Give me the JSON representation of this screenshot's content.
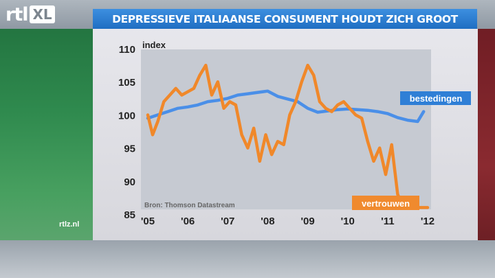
{
  "header": {
    "logo_rtl": "rtl",
    "logo_xl": "XL",
    "title": "DEPRESSIEVE ITALIAANSE CONSUMENT HOUDT ZICH GROOT"
  },
  "footer": {
    "site": "rtlz.nl"
  },
  "colors": {
    "title_bar": "#2a7fd6",
    "series_bestedingen": "#4a8fe8",
    "series_vertrouwen": "#f0882a",
    "plot_bg": "#c6cad2"
  },
  "chart_data": {
    "type": "line",
    "ylabel": "index",
    "source": "Bron: Thomson Datastream",
    "ylim": [
      85,
      110
    ],
    "yticks": [
      85,
      90,
      95,
      100,
      105,
      110
    ],
    "xlim": [
      2005,
      2012
    ],
    "xticks": [
      {
        "value": 2005,
        "label": "'05"
      },
      {
        "value": 2006,
        "label": "'06"
      },
      {
        "value": 2007,
        "label": "'07"
      },
      {
        "value": 2008,
        "label": "'08"
      },
      {
        "value": 2009,
        "label": "'09"
      },
      {
        "value": 2010,
        "label": "'10"
      },
      {
        "value": 2011,
        "label": "'11"
      },
      {
        "value": 2012,
        "label": "'12"
      }
    ],
    "legend_placement": "series labels at line ends",
    "series": [
      {
        "name": "bestedingen",
        "color": "#4a8fe8",
        "x": [
          2005.0,
          2005.25,
          2005.5,
          2005.75,
          2006.0,
          2006.25,
          2006.5,
          2006.75,
          2007.0,
          2007.25,
          2007.5,
          2007.75,
          2008.0,
          2008.25,
          2008.5,
          2008.75,
          2009.0,
          2009.25,
          2009.5,
          2009.75,
          2010.0,
          2010.25,
          2010.5,
          2010.75,
          2011.0,
          2011.25,
          2011.5,
          2011.75,
          2011.9
        ],
        "y": [
          99.5,
          100.0,
          100.5,
          101.0,
          101.2,
          101.5,
          102.0,
          102.2,
          102.5,
          103.0,
          103.2,
          103.4,
          103.6,
          102.8,
          102.4,
          102.0,
          101.0,
          100.4,
          100.6,
          100.8,
          100.9,
          100.8,
          100.7,
          100.5,
          100.2,
          99.6,
          99.2,
          99.0,
          100.5
        ]
      },
      {
        "name": "vertrouwen",
        "color": "#f0882a",
        "x": [
          2005.0,
          2005.12,
          2005.25,
          2005.4,
          2005.55,
          2005.7,
          2005.85,
          2006.0,
          2006.15,
          2006.3,
          2006.45,
          2006.6,
          2006.75,
          2006.9,
          2007.05,
          2007.2,
          2007.35,
          2007.5,
          2007.65,
          2007.8,
          2007.95,
          2008.1,
          2008.25,
          2008.4,
          2008.55,
          2008.7,
          2008.85,
          2009.0,
          2009.15,
          2009.3,
          2009.45,
          2009.6,
          2009.75,
          2009.9,
          2010.05,
          2010.2,
          2010.35,
          2010.5,
          2010.65,
          2010.8,
          2010.95,
          2011.1,
          2011.25,
          2011.4,
          2011.55,
          2011.7,
          2011.85,
          2012.0
        ],
        "y": [
          100,
          97,
          99,
          102,
          103,
          104,
          103,
          103.5,
          104,
          106,
          107.5,
          103,
          105,
          101,
          102,
          101.5,
          97,
          95,
          98,
          93,
          97,
          94,
          96,
          95.5,
          100,
          102,
          105,
          107.5,
          106,
          102,
          101,
          100.5,
          101.5,
          102,
          101,
          100,
          99.5,
          96,
          93,
          95,
          91,
          95.5,
          88,
          86,
          86,
          86,
          86,
          86
        ]
      }
    ]
  }
}
